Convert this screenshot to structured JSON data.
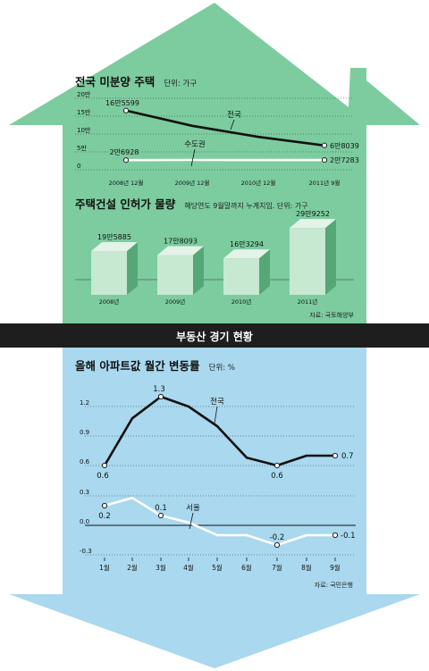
{
  "colors": {
    "top_bg": "#7ccc9f",
    "bottom_bg": "#a9d8ef",
    "banner_bg": "#1e1e1e",
    "banner_text": "#ffffff",
    "box_front": "#c7e8d1",
    "box_top": "#e3f3e8",
    "box_side": "#55a777",
    "line_dark": "#111111",
    "line_white": "#ffffff"
  },
  "section_top": {
    "chart1": {
      "title": "전국 미분양 주택",
      "unit": "단위: 가구"
    },
    "chart2": {
      "title": "주택건설 인허가 물량",
      "note": "해당연도 9월말까지 누계치임. 단위: 가구",
      "source": "자료: 국토해양부"
    }
  },
  "banner": "부동산 경기 현황",
  "section_bottom": {
    "chart3": {
      "title": "올해 아파트값 월간 변동률",
      "unit": "단위: %",
      "source": "자료: 국민은행"
    }
  },
  "chart_data": [
    {
      "type": "line",
      "title": "전국 미분양 주택",
      "ylabel": "단위: 가구",
      "categories": [
        "2008년 12월",
        "2009년 12월",
        "2010년 12월",
        "2011년 9월"
      ],
      "y_ticks": [
        "20만",
        "15만",
        "10만",
        "5만",
        "0"
      ],
      "ylim": [
        0,
        200000
      ],
      "series": [
        {
          "name": "전국",
          "values": [
            165599,
            123000,
            92000,
            68039
          ],
          "labels": [
            "16만5599",
            "",
            "",
            "6만8039"
          ]
        },
        {
          "name": "수도권",
          "values": [
            26928,
            27500,
            27300,
            27283
          ],
          "labels": [
            "2만6928",
            "",
            "",
            "2만7283"
          ]
        }
      ],
      "grid": "dotted horizontal"
    },
    {
      "type": "bar",
      "title": "주택건설 인허가 물량",
      "ylabel": "단위: 가구",
      "categories": [
        "2008년",
        "2009년",
        "2010년",
        "2011년"
      ],
      "values": [
        195885,
        178093,
        163294,
        299252
      ],
      "labels": [
        "19만5885",
        "17만8093",
        "16만3294",
        "29만9252"
      ]
    },
    {
      "type": "line",
      "title": "올해 아파트값 월간 변동률",
      "ylabel": "단위: %",
      "categories": [
        "1월",
        "2월",
        "3월",
        "4월",
        "5월",
        "6월",
        "7월",
        "8월",
        "9월"
      ],
      "y_ticks_upper": [
        "1.2",
        "0.9",
        "0.6"
      ],
      "y_ticks_lower": [
        "0.3",
        "0.0",
        "-0.3"
      ],
      "series": [
        {
          "name": "전국",
          "values": [
            0.6,
            1.08,
            1.3,
            1.2,
            1.0,
            0.68,
            0.6,
            0.7,
            0.7
          ],
          "labels": [
            "0.6",
            "",
            "1.3",
            "",
            "",
            "",
            "0.6",
            "",
            "0.7"
          ]
        },
        {
          "name": "서울",
          "values": [
            0.2,
            0.28,
            0.1,
            0.03,
            -0.1,
            -0.1,
            -0.2,
            -0.1,
            -0.1
          ],
          "labels": [
            "0.2",
            "",
            "0.1",
            "",
            "",
            "",
            "-0.2",
            "",
            "-0.1"
          ]
        }
      ],
      "grid": "dotted horizontal"
    }
  ]
}
